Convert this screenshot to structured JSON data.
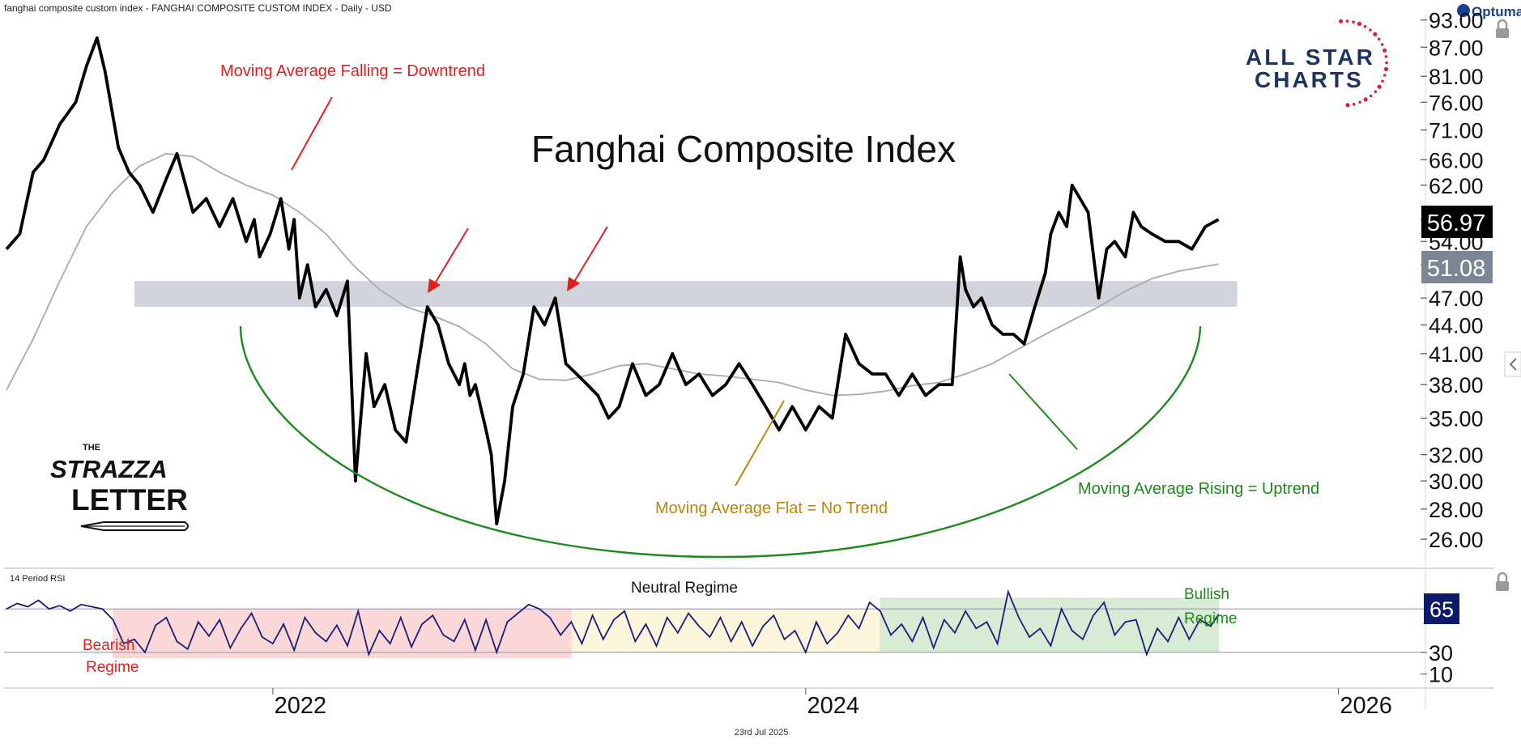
{
  "header": {
    "title": "fanghai composite custom index - FANGHAI COMPOSITE CUSTOM INDEX - Daily - USD",
    "brand": "Optuma",
    "date_footer": "23rd Jul 2025"
  },
  "logos": {
    "allstar_line1": "ALL STAR",
    "allstar_line2": "CHARTS",
    "strazza_line1": "THE",
    "strazza_line2": "STRAZZA",
    "strazza_line3": "LETTER"
  },
  "colors": {
    "price": "#000000",
    "moving_average": "#a9aab0",
    "resistance_band": "#c9ccd3",
    "bowl_curve": "#1c8a1c",
    "arrow_red": "#e31e1e",
    "flat_line": "#b8860b",
    "rsi_line": "#1c1c7a",
    "bearish_zone": "#f7b9b9",
    "neutral_zone": "#fbf0c2",
    "bullish_zone": "#b9dcb3",
    "price_badge": "#000000",
    "ma_badge": "#7b8594",
    "rsi_badge": "#0b1a6b"
  },
  "chart_data": [
    {
      "type": "line",
      "title": "Fanghai Composite Index",
      "xlabel": "",
      "ylabel": "",
      "yscale": "log",
      "ylim": [
        24.5,
        95
      ],
      "xlim": [
        2021.0,
        2026.6
      ],
      "y_ticks": [
        "26.00",
        "28.00",
        "30.00",
        "32.00",
        "35.00",
        "38.00",
        "41.00",
        "44.00",
        "47.00",
        "51.00",
        "54.00",
        "57.00",
        "62.00",
        "66.00",
        "71.00",
        "76.00",
        "81.00",
        "87.00",
        "93.00"
      ],
      "x_ticks": [
        "2022",
        "2024",
        "2026"
      ],
      "last_price": "56.97",
      "last_ma": "51.08",
      "series": [
        {
          "key": "price",
          "x": [
            2021.0,
            2021.05,
            2021.1,
            2021.14,
            2021.2,
            2021.26,
            2021.3,
            2021.34,
            2021.37,
            2021.42,
            2021.46,
            2021.5,
            2021.55,
            2021.6,
            2021.64,
            2021.7,
            2021.75,
            2021.8,
            2021.85,
            2021.9,
            2021.93,
            2021.95,
            2021.99,
            2022.03,
            2022.06,
            2022.08,
            2022.1,
            2022.13,
            2022.16,
            2022.2,
            2022.24,
            2022.28,
            2022.31,
            2022.35,
            2022.38,
            2022.42,
            2022.46,
            2022.5,
            2022.54,
            2022.58,
            2022.62,
            2022.66,
            2022.7,
            2022.72,
            2022.74,
            2022.76,
            2022.8,
            2022.82,
            2022.84,
            2022.87,
            2022.9,
            2022.94,
            2022.98,
            2023.02,
            2023.06,
            2023.1,
            2023.14,
            2023.18,
            2023.22,
            2023.26,
            2023.3,
            2023.35,
            2023.4,
            2023.45,
            2023.5,
            2023.55,
            2023.6,
            2023.65,
            2023.7,
            2023.75,
            2023.8,
            2023.85,
            2023.9,
            2023.95,
            2024.0,
            2024.05,
            2024.1,
            2024.15,
            2024.2,
            2024.25,
            2024.3,
            2024.35,
            2024.4,
            2024.45,
            2024.5,
            2024.55,
            2024.58,
            2024.6,
            2024.63,
            2024.66,
            2024.7,
            2024.74,
            2024.78,
            2024.82,
            2024.86,
            2024.9,
            2024.92,
            2024.95,
            2024.98,
            2025.0,
            2025.03,
            2025.06,
            2025.1,
            2025.13,
            2025.16,
            2025.2,
            2025.23,
            2025.26,
            2025.3,
            2025.35,
            2025.4,
            2025.45,
            2025.5,
            2025.55
          ],
          "values": [
            53.0,
            55.0,
            64.0,
            66.0,
            72.0,
            76.0,
            83.0,
            89.0,
            82.0,
            68.0,
            64.0,
            62.0,
            58.0,
            63.0,
            67.0,
            58.0,
            60.0,
            56.0,
            60.0,
            54.0,
            57.0,
            52.0,
            55.0,
            60.0,
            53.0,
            57.0,
            47.0,
            51.0,
            46.0,
            48.0,
            45.0,
            49.0,
            30.0,
            41.0,
            36.0,
            38.0,
            34.0,
            33.0,
            39.0,
            46.0,
            44.0,
            40.0,
            38.0,
            40.0,
            37.0,
            38.0,
            34.0,
            32.0,
            27.0,
            30.0,
            36.0,
            39.0,
            46.0,
            44.0,
            47.0,
            40.0,
            39.0,
            38.0,
            37.0,
            35.0,
            36.0,
            40.0,
            37.0,
            38.0,
            41.0,
            38.0,
            39.0,
            37.0,
            38.0,
            40.0,
            38.0,
            36.0,
            34.0,
            36.0,
            34.0,
            36.0,
            35.0,
            43.0,
            40.0,
            39.0,
            39.0,
            37.0,
            39.0,
            37.0,
            38.0,
            38.0,
            52.0,
            48.0,
            46.0,
            47.0,
            44.0,
            43.0,
            43.0,
            42.0,
            46.0,
            50.0,
            55.0,
            58.0,
            56.0,
            62.0,
            60.0,
            58.0,
            47.0,
            53.0,
            54.0,
            52.0,
            58.0,
            56.0,
            55.0,
            54.0,
            54.0,
            53.0,
            56.0,
            57.0
          ]
        },
        {
          "key": "moving_average",
          "x": [
            2021.0,
            2021.1,
            2021.2,
            2021.3,
            2021.4,
            2021.5,
            2021.6,
            2021.7,
            2021.8,
            2021.9,
            2022.0,
            2022.1,
            2022.2,
            2022.3,
            2022.4,
            2022.5,
            2022.6,
            2022.7,
            2022.8,
            2022.9,
            2023.0,
            2023.1,
            2023.2,
            2023.3,
            2023.4,
            2023.5,
            2023.6,
            2023.7,
            2023.8,
            2023.9,
            2024.0,
            2024.1,
            2024.2,
            2024.3,
            2024.4,
            2024.5,
            2024.6,
            2024.7,
            2024.8,
            2024.9,
            2025.0,
            2025.1,
            2025.2,
            2025.3,
            2025.4,
            2025.55
          ],
          "values": [
            37.5,
            42.5,
            49.0,
            56.0,
            61.0,
            65.0,
            67.0,
            66.5,
            64.0,
            62.0,
            60.5,
            58.0,
            55.0,
            51.0,
            48.0,
            46.0,
            45.0,
            43.8,
            42.0,
            39.5,
            38.5,
            38.4,
            39.0,
            39.8,
            40.0,
            39.5,
            39.0,
            38.8,
            38.5,
            38.2,
            37.5,
            37.0,
            37.1,
            37.4,
            37.9,
            38.2,
            39.0,
            40.0,
            41.5,
            43.0,
            44.5,
            46.0,
            47.8,
            49.3,
            50.2,
            51.08
          ]
        }
      ],
      "resistance_zone": [
        46.0,
        49.0
      ]
    },
    {
      "type": "line",
      "title": "14 Period RSI",
      "xlabel": "",
      "ylabel": "",
      "ylim": [
        0,
        100
      ],
      "y_ticks": [
        "10",
        "30"
      ],
      "levels": [
        30,
        70
      ],
      "last_value": "65",
      "series": [
        {
          "key": "rsi",
          "x": [
            2021.0,
            2021.04,
            2021.08,
            2021.12,
            2021.16,
            2021.2,
            2021.24,
            2021.28,
            2021.32,
            2021.36,
            2021.4,
            2021.44,
            2021.48,
            2021.52,
            2021.56,
            2021.6,
            2021.64,
            2021.68,
            2021.72,
            2021.76,
            2021.8,
            2021.84,
            2021.88,
            2021.92,
            2021.96,
            2022.0,
            2022.04,
            2022.08,
            2022.12,
            2022.16,
            2022.2,
            2022.24,
            2022.28,
            2022.32,
            2022.36,
            2022.4,
            2022.44,
            2022.48,
            2022.52,
            2022.56,
            2022.6,
            2022.64,
            2022.68,
            2022.72,
            2022.76,
            2022.8,
            2022.84,
            2022.88,
            2022.92,
            2022.96,
            2023.0,
            2023.04,
            2023.08,
            2023.12,
            2023.16,
            2023.2,
            2023.24,
            2023.28,
            2023.32,
            2023.36,
            2023.4,
            2023.44,
            2023.48,
            2023.52,
            2023.56,
            2023.6,
            2023.64,
            2023.68,
            2023.72,
            2023.76,
            2023.8,
            2023.84,
            2023.88,
            2023.92,
            2023.96,
            2024.0,
            2024.04,
            2024.08,
            2024.12,
            2024.16,
            2024.2,
            2024.24,
            2024.28,
            2024.32,
            2024.36,
            2024.4,
            2024.44,
            2024.48,
            2024.52,
            2024.56,
            2024.6,
            2024.64,
            2024.68,
            2024.72,
            2024.76,
            2024.8,
            2024.84,
            2024.88,
            2024.92,
            2024.96,
            2025.0,
            2025.04,
            2025.08,
            2025.12,
            2025.16,
            2025.2,
            2025.24,
            2025.28,
            2025.32,
            2025.36,
            2025.4,
            2025.44,
            2025.48,
            2025.52,
            2025.55
          ],
          "values": [
            70,
            75,
            72,
            78,
            70,
            73,
            68,
            74,
            72,
            70,
            60,
            38,
            42,
            30,
            55,
            62,
            40,
            33,
            58,
            45,
            60,
            34,
            52,
            66,
            44,
            38,
            56,
            32,
            62,
            48,
            40,
            55,
            36,
            68,
            28,
            50,
            38,
            62,
            35,
            56,
            64,
            46,
            40,
            60,
            32,
            60,
            30,
            58,
            66,
            74,
            70,
            62,
            46,
            58,
            38,
            64,
            42,
            60,
            68,
            40,
            56,
            36,
            62,
            48,
            66,
            54,
            44,
            62,
            40,
            58,
            36,
            54,
            64,
            42,
            50,
            30,
            58,
            38,
            48,
            64,
            52,
            76,
            68,
            46,
            56,
            40,
            62,
            34,
            60,
            48,
            68,
            52,
            58,
            38,
            86,
            62,
            44,
            52,
            36,
            70,
            50,
            42,
            64,
            76,
            46,
            58,
            60,
            28,
            52,
            40,
            62,
            42,
            60,
            54,
            65
          ]
        }
      ],
      "zones": [
        {
          "label": "Bearish Regime",
          "x": [
            2021.4,
            2023.12
          ],
          "y": [
            25,
            70
          ]
        },
        {
          "label": "Neutral Regime",
          "x": [
            2023.12,
            2024.28
          ],
          "y": [
            30,
            70
          ]
        },
        {
          "label": "Bullish Regime",
          "x": [
            2024.28,
            2025.55
          ],
          "y": [
            30,
            80
          ]
        }
      ]
    }
  ],
  "annotations": {
    "falling": "Moving Average Falling = Downtrend",
    "flat": "Moving Average Flat = No Trend",
    "rising": "Moving Average Rising = Uptrend",
    "rsi_title": "14 Period RSI",
    "neutral": "Neutral Regime",
    "bearish_1": "Bearish",
    "bearish_2": "Regime",
    "bullish_1": "Bullish",
    "bullish_2": "Regime"
  }
}
